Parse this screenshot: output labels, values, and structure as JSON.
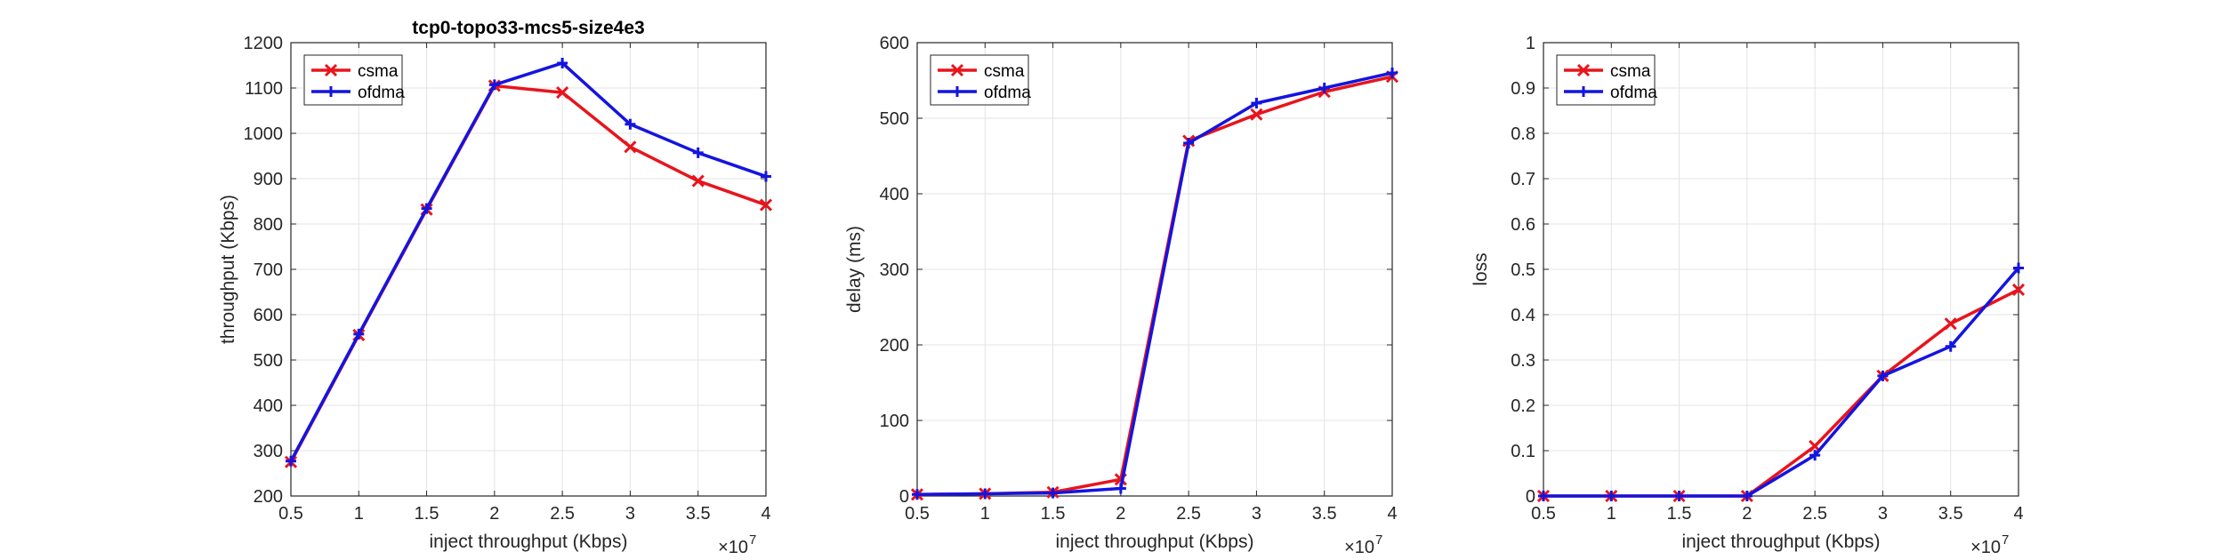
{
  "figure": {
    "background": "#ffffff",
    "multiplier_label": "×10",
    "multiplier_exponent": "7"
  },
  "series_style": [
    {
      "name": "csma",
      "color": "#e8141c",
      "marker": "x"
    },
    {
      "name": "ofdma",
      "color": "#1414e0",
      "marker": "plus"
    }
  ],
  "chart_data": [
    {
      "type": "line",
      "title": "tcp0-topo33-mcs5-size4e3",
      "xlabel": "inject throughput (Kbps)",
      "ylabel": "throughput (Kbps)",
      "x_multiplier": "×10^7",
      "xlim": [
        0.5,
        4
      ],
      "ylim": [
        200,
        1200
      ],
      "xticks": [
        "0.5",
        "1",
        "1.5",
        "2",
        "2.5",
        "3",
        "3.5",
        "4"
      ],
      "yticks": [
        "200",
        "300",
        "400",
        "500",
        "600",
        "700",
        "800",
        "900",
        "1000",
        "1100",
        "1200"
      ],
      "grid": true,
      "legend_position": "top-left",
      "x": [
        0.5,
        1,
        1.5,
        2,
        2.5,
        3,
        3.5,
        4
      ],
      "series": [
        {
          "name": "csma",
          "values": [
            275,
            555,
            832,
            1105,
            1090,
            970,
            895,
            842
          ]
        },
        {
          "name": "ofdma",
          "values": [
            277,
            557,
            834,
            1107,
            1155,
            1020,
            957,
            905
          ]
        }
      ]
    },
    {
      "type": "line",
      "title": "",
      "xlabel": "inject throughput (Kbps)",
      "ylabel": "delay (ms)",
      "x_multiplier": "×10^7",
      "xlim": [
        0.5,
        4
      ],
      "ylim": [
        0,
        600
      ],
      "xticks": [
        "0.5",
        "1",
        "1.5",
        "2",
        "2.5",
        "3",
        "3.5",
        "4"
      ],
      "yticks": [
        "0",
        "100",
        "200",
        "300",
        "400",
        "500",
        "600"
      ],
      "grid": true,
      "legend_position": "top-left",
      "x": [
        0.5,
        1,
        1.5,
        2,
        2.5,
        3,
        3.5,
        4
      ],
      "series": [
        {
          "name": "csma",
          "values": [
            2,
            3,
            5,
            22,
            470,
            505,
            535,
            555
          ]
        },
        {
          "name": "ofdma",
          "values": [
            2,
            3,
            4,
            10,
            467,
            520,
            540,
            560
          ]
        }
      ]
    },
    {
      "type": "line",
      "title": "",
      "xlabel": "inject throughput (Kbps)",
      "ylabel": "loss",
      "x_multiplier": "×10^7",
      "xlim": [
        0.5,
        4
      ],
      "ylim": [
        0,
        1
      ],
      "xticks": [
        "0.5",
        "1",
        "1.5",
        "2",
        "2.5",
        "3",
        "3.5",
        "4"
      ],
      "yticks": [
        "0",
        "0.1",
        "0.2",
        "0.3",
        "0.4",
        "0.5",
        "0.6",
        "0.7",
        "0.8",
        "0.9",
        "1"
      ],
      "grid": true,
      "legend_position": "top-left",
      "x": [
        0.5,
        1,
        1.5,
        2,
        2.5,
        3,
        3.5,
        4
      ],
      "series": [
        {
          "name": "csma",
          "values": [
            0,
            0,
            0,
            0,
            0.11,
            0.265,
            0.38,
            0.455
          ]
        },
        {
          "name": "ofdma",
          "values": [
            0,
            0,
            0,
            0,
            0.09,
            0.265,
            0.33,
            0.503
          ]
        }
      ]
    }
  ]
}
